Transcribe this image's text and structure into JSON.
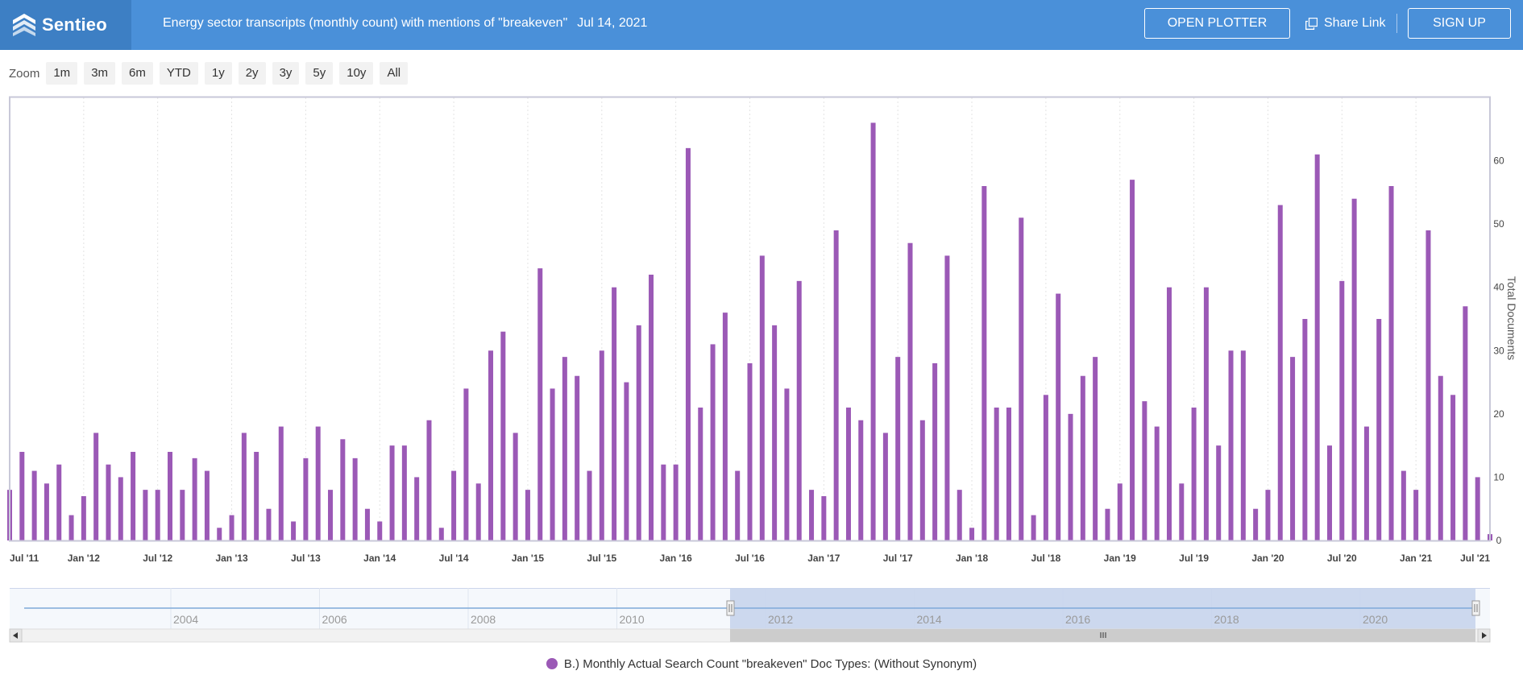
{
  "header": {
    "logo_text": "Sentieo",
    "title": "Energy sector transcripts (monthly count) with mentions of \"breakeven\"",
    "date": "Jul 14, 2021",
    "open_plotter": "OPEN PLOTTER",
    "share_link": "Share Link",
    "sign_up": "SIGN UP"
  },
  "zoom": {
    "label": "Zoom",
    "options": [
      "1m",
      "3m",
      "6m",
      "YTD",
      "1y",
      "2y",
      "3y",
      "5y",
      "10y",
      "All"
    ]
  },
  "navigator": {
    "year_labels": [
      "2004",
      "2006",
      "2008",
      "2010",
      "2012",
      "2014",
      "2016",
      "2018",
      "2020"
    ]
  },
  "colors": {
    "bar": "#9b59b6",
    "header": "#4a90d9",
    "logo_bg": "#3d7fc4",
    "navigator_selection": "#c8d4ec"
  },
  "chart_data": {
    "type": "bar",
    "title": "",
    "xlabel": "",
    "ylabel": "Total Documents",
    "yaxis_side": "right",
    "ylim": [
      0,
      70
    ],
    "yticks": [
      0,
      10,
      20,
      30,
      40,
      50,
      60
    ],
    "grid": "vertical dotted",
    "x_start": "Jul '11",
    "x_end": "Jul '21",
    "xtick_labels": [
      "Jul '11",
      "Jan '12",
      "Jul '12",
      "Jan '13",
      "Jul '13",
      "Jan '14",
      "Jul '14",
      "Jan '15",
      "Jul '15",
      "Jan '16",
      "Jul '16",
      "Jan '17",
      "Jul '17",
      "Jan '18",
      "Jul '18",
      "Jan '19",
      "Jul '19",
      "Jan '20",
      "Jul '20",
      "Jan '21",
      "Jul '21"
    ],
    "legend_placement": "bottom-center",
    "series": [
      {
        "name": "B.) Monthly Actual Search Count \"breakeven\" Doc Types: (Without Synonym)",
        "values": [
          8,
          14,
          11,
          9,
          12,
          4,
          7,
          17,
          12,
          10,
          14,
          8,
          8,
          14,
          8,
          13,
          11,
          2,
          4,
          17,
          14,
          5,
          18,
          3,
          13,
          18,
          8,
          16,
          13,
          5,
          3,
          15,
          15,
          10,
          19,
          2,
          11,
          24,
          9,
          30,
          33,
          17,
          8,
          43,
          24,
          29,
          26,
          11,
          30,
          40,
          25,
          34,
          42,
          12,
          12,
          62,
          21,
          31,
          36,
          11,
          28,
          45,
          34,
          24,
          41,
          8,
          7,
          49,
          21,
          19,
          66,
          17,
          29,
          47,
          19,
          28,
          45,
          8,
          2,
          56,
          21,
          21,
          51,
          4,
          23,
          39,
          20,
          26,
          29,
          5,
          9,
          57,
          22,
          18,
          40,
          9,
          21,
          40,
          15,
          30,
          30,
          5,
          8,
          53,
          29,
          35,
          61,
          15,
          41,
          54,
          18,
          35,
          56,
          11,
          8,
          49,
          26,
          23,
          37,
          10,
          1
        ]
      }
    ]
  }
}
